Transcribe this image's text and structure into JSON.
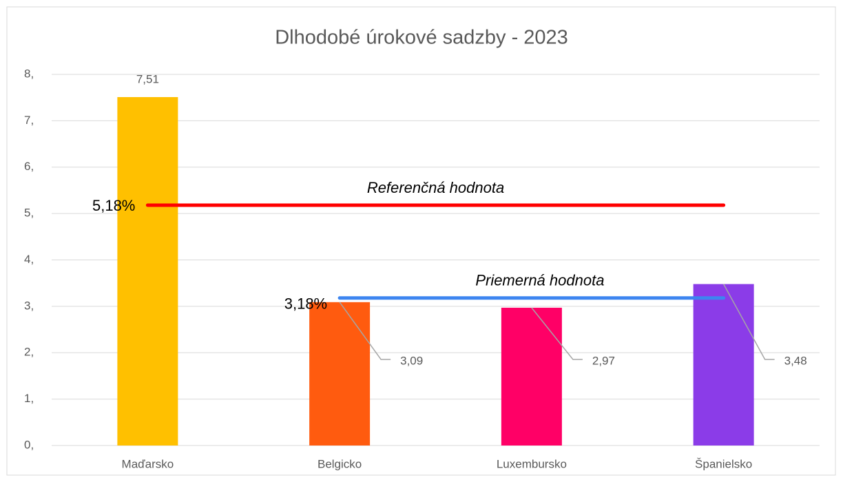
{
  "chart_data": {
    "type": "bar",
    "title": "Dlhodobé úrokové sadzby - 2023",
    "categories": [
      "Maďarsko",
      "Belgicko",
      "Luxembursko",
      "Španielsko"
    ],
    "values": [
      7.51,
      3.09,
      2.97,
      3.48
    ],
    "value_labels": [
      "7,51",
      "3,09",
      "2,97",
      "3,48"
    ],
    "colors": [
      "#ffc000",
      "#ff5b0f",
      "#ff0066",
      "#8b3ce8"
    ],
    "ylim": [
      0,
      8
    ],
    "yticks": [
      {
        "value": 0,
        "label": "0,"
      },
      {
        "value": 1,
        "label": "1,"
      },
      {
        "value": 2,
        "label": "2,"
      },
      {
        "value": 3,
        "label": "3,"
      },
      {
        "value": 4,
        "label": "4,"
      },
      {
        "value": 5,
        "label": "5,"
      },
      {
        "value": 6,
        "label": "6,"
      },
      {
        "value": 7,
        "label": "7,"
      },
      {
        "value": 8,
        "label": "8,"
      }
    ],
    "grid": true,
    "reference_lines": [
      {
        "name": "Referenčná hodnota",
        "value": 5.18,
        "value_label": "5,18%",
        "color": "#ff0000"
      },
      {
        "name": "Priemerná hodnota",
        "value": 3.18,
        "value_label": "3,18%",
        "color": "#3d85f0"
      }
    ]
  }
}
